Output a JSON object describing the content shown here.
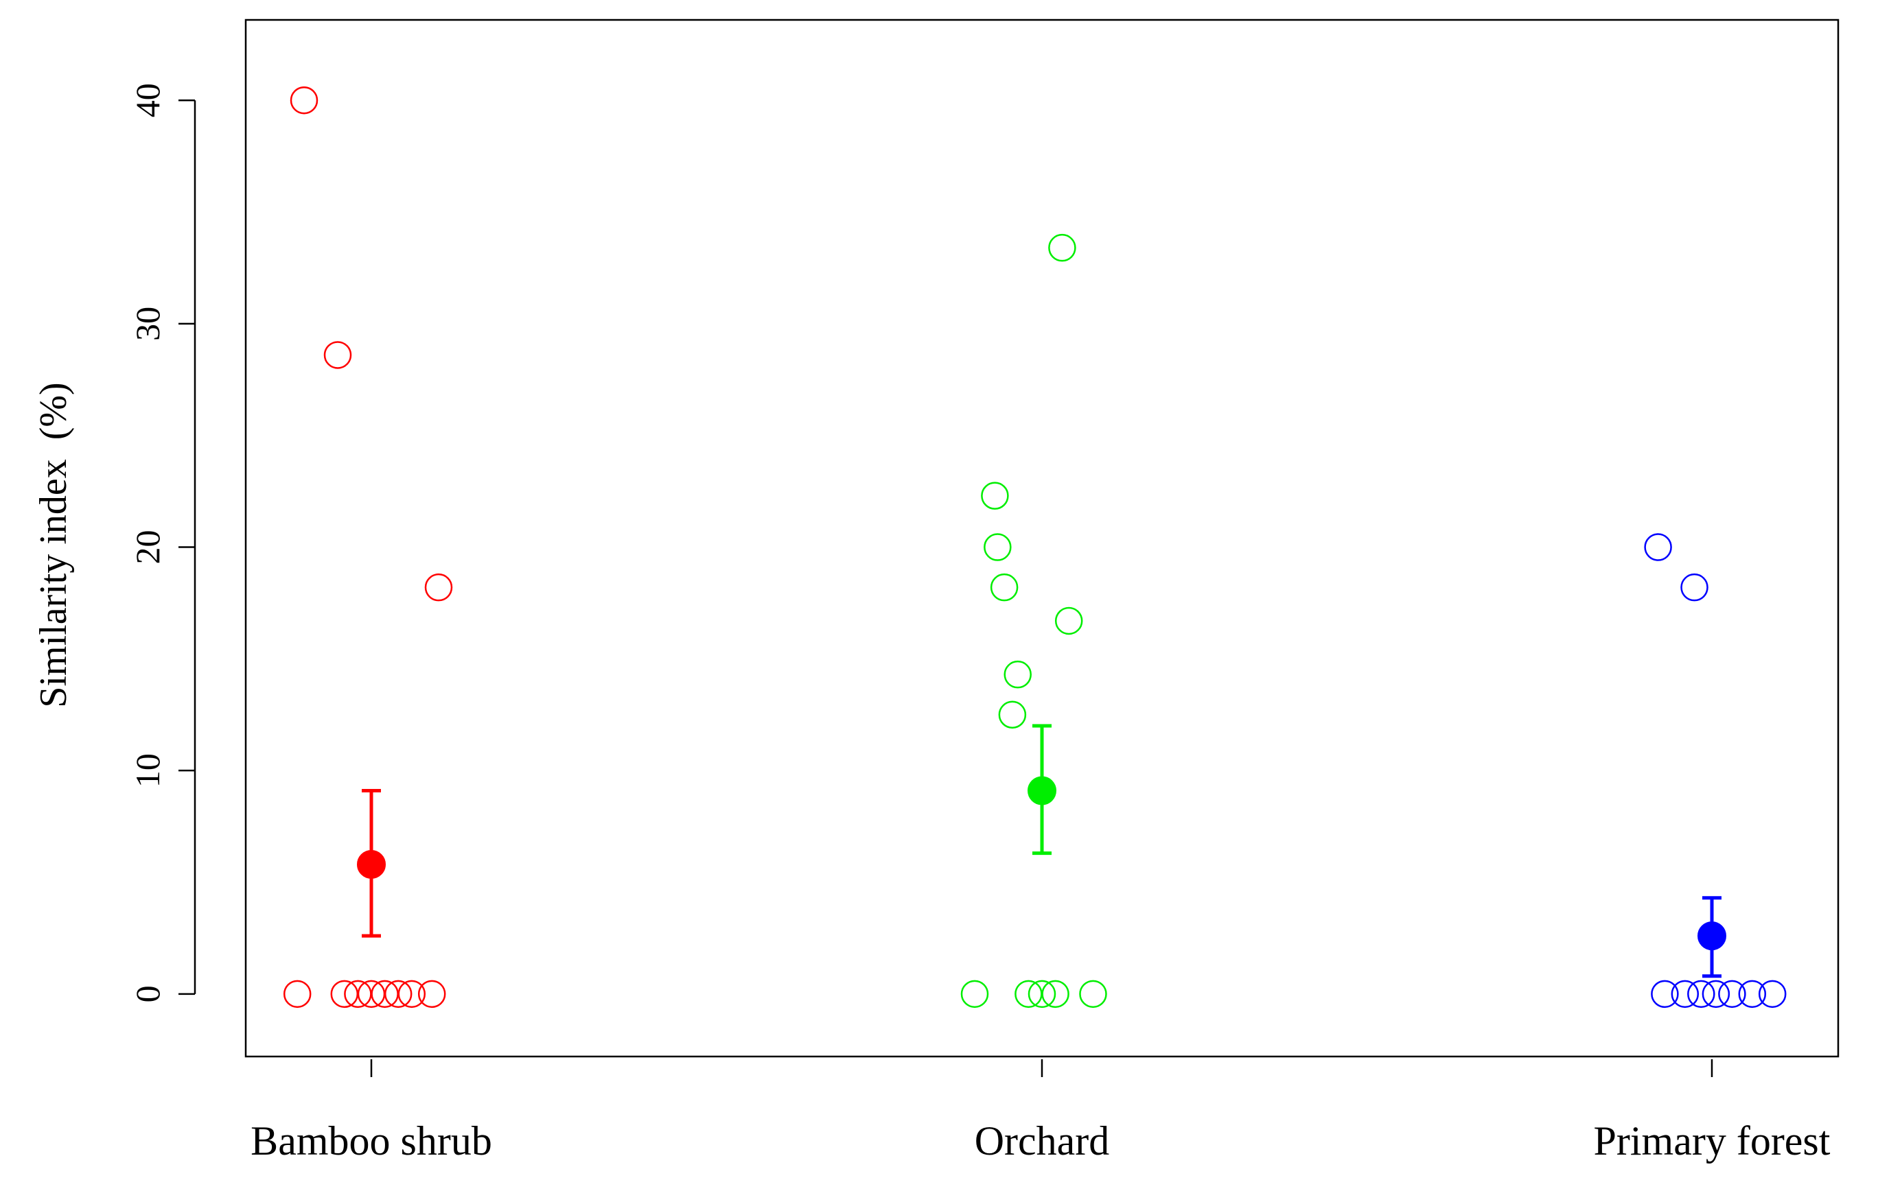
{
  "chart_data": {
    "type": "scatter",
    "title": "",
    "xlabel": "",
    "ylabel": "Similarity index  (%)",
    "categories": [
      "Bamboo shrub",
      "Orchard",
      "Primary forest"
    ],
    "ylim": [
      -2.8,
      43.6
    ],
    "yticks": [
      0,
      10,
      20,
      30,
      40
    ],
    "grid": false,
    "legend": "none",
    "series": [
      {
        "category": "Bamboo shrub",
        "color": "#ff0000",
        "points": [
          {
            "x": -0.05,
            "y": 40.0
          },
          {
            "x": -0.025,
            "y": 28.6
          },
          {
            "x": 0.05,
            "y": 18.2
          },
          {
            "x": -0.055,
            "y": 0
          },
          {
            "x": -0.02,
            "y": 0
          },
          {
            "x": -0.01,
            "y": 0
          },
          {
            "x": 0.0,
            "y": 0
          },
          {
            "x": 0.01,
            "y": 0
          },
          {
            "x": 0.02,
            "y": 0
          },
          {
            "x": 0.03,
            "y": 0
          },
          {
            "x": 0.045,
            "y": 0
          }
        ],
        "mean": 5.8,
        "err_low": 2.6,
        "err_high": 9.1
      },
      {
        "category": "Orchard",
        "color": "#00ee00",
        "points": [
          {
            "x": 0.015,
            "y": 33.4
          },
          {
            "x": -0.035,
            "y": 22.3
          },
          {
            "x": -0.033,
            "y": 20.0
          },
          {
            "x": -0.028,
            "y": 18.2
          },
          {
            "x": 0.02,
            "y": 16.7
          },
          {
            "x": -0.018,
            "y": 14.3
          },
          {
            "x": -0.022,
            "y": 12.5
          },
          {
            "x": -0.05,
            "y": 0
          },
          {
            "x": -0.01,
            "y": 0
          },
          {
            "x": 0.0,
            "y": 0
          },
          {
            "x": 0.01,
            "y": 0
          },
          {
            "x": 0.038,
            "y": 0
          }
        ],
        "mean": 9.1,
        "err_low": 6.3,
        "err_high": 12.0
      },
      {
        "category": "Primary forest",
        "color": "#0000ff",
        "points": [
          {
            "x": -0.04,
            "y": 20.0
          },
          {
            "x": -0.013,
            "y": 18.2
          },
          {
            "x": -0.035,
            "y": 0
          },
          {
            "x": -0.02,
            "y": 0
          },
          {
            "x": -0.008,
            "y": 0
          },
          {
            "x": 0.003,
            "y": 0
          },
          {
            "x": 0.015,
            "y": 0
          },
          {
            "x": 0.03,
            "y": 0
          },
          {
            "x": 0.045,
            "y": 0
          }
        ],
        "mean": 2.6,
        "err_low": 0.8,
        "err_high": 4.3
      }
    ]
  }
}
